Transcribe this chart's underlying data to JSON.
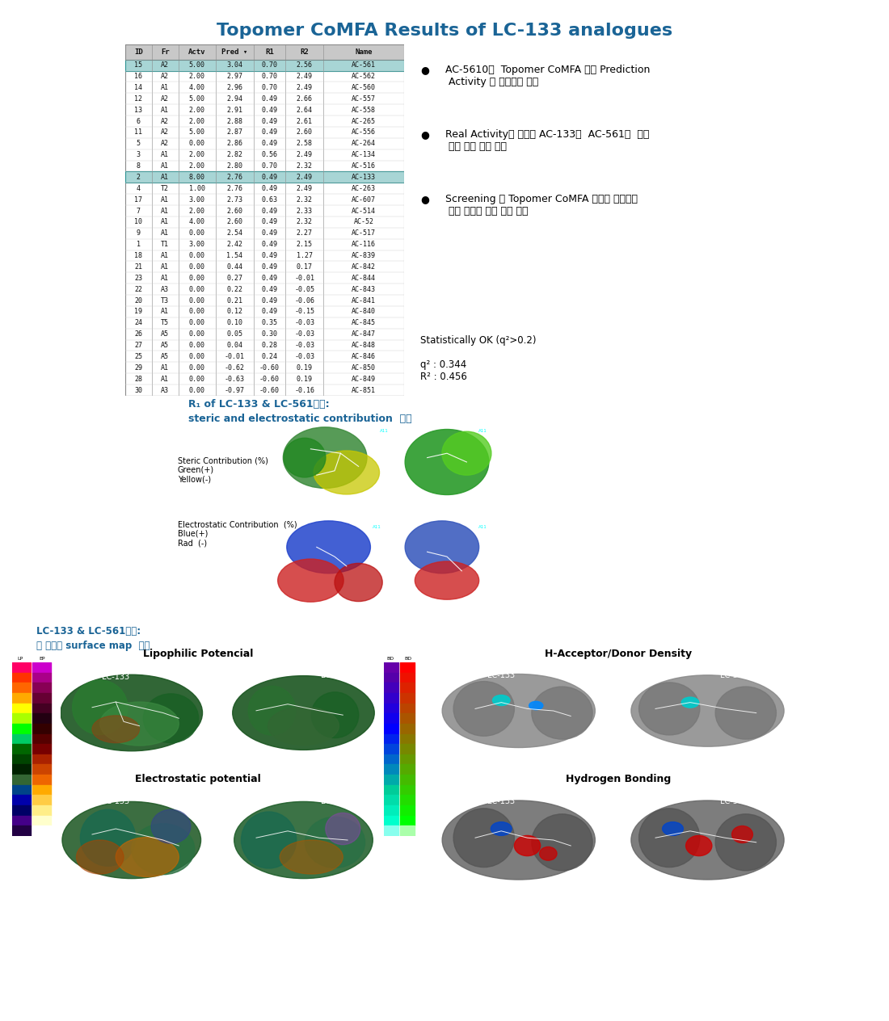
{
  "title": "Topomer CoMFA Results of LC-133 analogues",
  "title_color": "#1a6496",
  "title_fontsize": 16,
  "table_headers": [
    "ID",
    "Fr",
    "Actv",
    "Pred",
    "R1",
    "R2",
    "Name"
  ],
  "table_data": [
    [
      "15",
      "A2",
      "5.00",
      "3.04",
      "0.70",
      "2.56",
      "AC-561"
    ],
    [
      "16",
      "A2",
      "2.00",
      "2.97",
      "0.70",
      "2.49",
      "AC-562"
    ],
    [
      "14",
      "A1",
      "4.00",
      "2.96",
      "0.70",
      "2.49",
      "AC-560"
    ],
    [
      "12",
      "A2",
      "5.00",
      "2.94",
      "0.49",
      "2.66",
      "AC-557"
    ],
    [
      "13",
      "A1",
      "2.00",
      "2.91",
      "0.49",
      "2.64",
      "AC-558"
    ],
    [
      "6",
      "A2",
      "2.00",
      "2.88",
      "0.49",
      "2.61",
      "AC-265"
    ],
    [
      "11",
      "A2",
      "5.00",
      "2.87",
      "0.49",
      "2.60",
      "AC-556"
    ],
    [
      "5",
      "A2",
      "0.00",
      "2.86",
      "0.49",
      "2.58",
      "AC-264"
    ],
    [
      "3",
      "A1",
      "2.00",
      "2.82",
      "0.56",
      "2.49",
      "AC-134"
    ],
    [
      "8",
      "A1",
      "2.00",
      "2.80",
      "0.70",
      "2.32",
      "AC-516"
    ],
    [
      "2",
      "A1",
      "8.00",
      "2.76",
      "0.49",
      "2.49",
      "AC-133"
    ],
    [
      "4",
      "T2",
      "1.00",
      "2.76",
      "0.49",
      "2.49",
      "AC-263"
    ],
    [
      "17",
      "A1",
      "3.00",
      "2.73",
      "0.63",
      "2.32",
      "AC-607"
    ],
    [
      "7",
      "A1",
      "2.00",
      "2.60",
      "0.49",
      "2.33",
      "AC-514"
    ],
    [
      "10",
      "A1",
      "4.00",
      "2.60",
      "0.49",
      "2.32",
      "AC-52"
    ],
    [
      "9",
      "A1",
      "0.00",
      "2.54",
      "0.49",
      "2.27",
      "AC-517"
    ],
    [
      "1",
      "T1",
      "3.00",
      "2.42",
      "0.49",
      "2.15",
      "AC-116"
    ],
    [
      "18",
      "A1",
      "0.00",
      "1.54",
      "0.49",
      "1.27",
      "AC-839"
    ],
    [
      "21",
      "A1",
      "0.00",
      "0.44",
      "0.49",
      "0.17",
      "AC-842"
    ],
    [
      "23",
      "A1",
      "0.00",
      "0.27",
      "0.49",
      "-0.01",
      "AC-844"
    ],
    [
      "22",
      "A3",
      "0.00",
      "0.22",
      "0.49",
      "-0.05",
      "AC-843"
    ],
    [
      "20",
      "T3",
      "0.00",
      "0.21",
      "0.49",
      "-0.06",
      "AC-841"
    ],
    [
      "19",
      "A1",
      "0.00",
      "0.12",
      "0.49",
      "-0.15",
      "AC-840"
    ],
    [
      "24",
      "T5",
      "0.00",
      "0.10",
      "0.35",
      "-0.03",
      "AC-845"
    ],
    [
      "26",
      "A5",
      "0.00",
      "0.05",
      "0.30",
      "-0.03",
      "AC-847"
    ],
    [
      "27",
      "A5",
      "0.00",
      "0.04",
      "0.28",
      "-0.03",
      "AC-848"
    ],
    [
      "25",
      "A5",
      "0.00",
      "-0.01",
      "0.24",
      "-0.03",
      "AC-846"
    ],
    [
      "29",
      "A1",
      "0.00",
      "-0.62",
      "-0.60",
      "0.19",
      "AC-850"
    ],
    [
      "28",
      "A1",
      "0.00",
      "-0.63",
      "-0.60",
      "0.19",
      "AC-849"
    ],
    [
      "30",
      "A3",
      "0.00",
      "-0.97",
      "-0.60",
      "-0.16",
      "AC-851"
    ]
  ],
  "highlight_color": "#a8d5d5",
  "highlight_border": "#2a9090",
  "header_bg": "#c8c8c8",
  "bullet_points": [
    "AC-5610이  Topomer CoMFA 결과 Prediction\n Activity 가 우수하게 나옴",
    "Real Activity가 우수한 AC-133와  AC-561의  구조\n 활성 관계 비교 수행",
    "Screening 과 Topomer CoMFA 결과를 바탕으로\n 신규 유도체 합성 계획 수립"
  ],
  "stats_line1": "Statistically OK (q²>0.2)",
  "stats_line2": "q² : 0.344",
  "stats_line3": "R² : 0.456",
  "section2_line1": "R₁ of LC-133 & LC-561분석:",
  "section2_line2": "steric and electrostatic contribution  비교",
  "steric_label": "Steric Contribution (%)\nGreen(+)\nYellow(-)",
  "electrostatic_label": "Electrostatic Contribution  (%)\nBlue(+)\nRad  (-)",
  "section3_line1": "LC-133 & LC-561분석:",
  "section3_line2": "각 분자의 surface map  비교",
  "lipo_title": "Lipophilic Potencial",
  "electro_title": "Electrostatic potential",
  "hacceptor_title": "H-Acceptor/Donor Density",
  "hbonding_title": "Hydrogen Bonding",
  "bg_color": "#ffffff",
  "section2_color": "#1a6496",
  "section3_color": "#1a6496"
}
